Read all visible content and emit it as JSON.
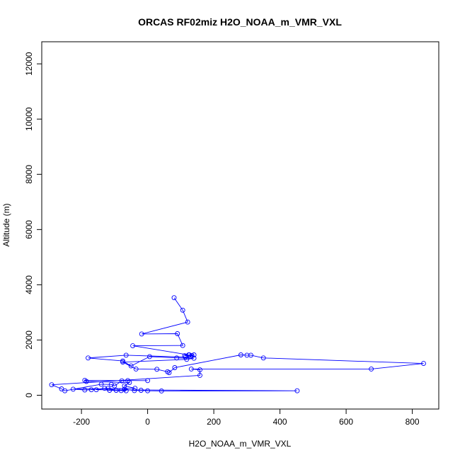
{
  "chart_data": {
    "type": "line",
    "title": "ORCAS RF02miz H2O_NOAA_m_VMR_VXL",
    "xlabel": "H2O_NOAA_m_VMR_VXL",
    "ylabel": "Altitude (m)",
    "xlim": [
      -320,
      880
    ],
    "ylim": [
      -500,
      12800
    ],
    "xticks": [
      -200,
      0,
      200,
      400,
      600,
      800
    ],
    "yticks": [
      0,
      2000,
      4000,
      6000,
      8000,
      10000,
      12000
    ],
    "grid": false,
    "series": [
      {
        "color": "#0000ff",
        "marker": "open-circle",
        "points": [
          [
            80,
            3530
          ],
          [
            106,
            3080
          ],
          [
            121,
            2650
          ],
          [
            -18,
            2220
          ],
          [
            90,
            2230
          ],
          [
            106,
            1800
          ],
          [
            -45,
            1790
          ],
          [
            124,
            1460
          ],
          [
            112,
            1430
          ],
          [
            134,
            1440
          ],
          [
            126,
            1460
          ],
          [
            140,
            1460
          ],
          [
            130,
            1400
          ],
          [
            114,
            1380
          ],
          [
            -65,
            1450
          ],
          [
            -180,
            1350
          ],
          [
            -75,
            1240
          ],
          [
            -50,
            1060
          ],
          [
            6,
            1400
          ],
          [
            88,
            1350
          ],
          [
            140,
            1340
          ],
          [
            118,
            1300
          ],
          [
            -75,
            1200
          ],
          [
            -35,
            950
          ],
          [
            28,
            940
          ],
          [
            60,
            850
          ],
          [
            65,
            820
          ],
          [
            82,
            1000
          ],
          [
            282,
            1460
          ],
          [
            300,
            1450
          ],
          [
            312,
            1450
          ],
          [
            350,
            1350
          ],
          [
            834,
            1150
          ],
          [
            676,
            950
          ],
          [
            132,
            950
          ],
          [
            158,
            920
          ],
          [
            158,
            720
          ],
          [
            -290,
            380
          ],
          [
            -260,
            230
          ],
          [
            -250,
            160
          ],
          [
            -140,
            400
          ],
          [
            -110,
            390
          ],
          [
            -100,
            340
          ],
          [
            -78,
            520
          ],
          [
            -60,
            530
          ],
          [
            0,
            530
          ],
          [
            -190,
            540
          ],
          [
            -185,
            500
          ],
          [
            -55,
            460
          ],
          [
            -70,
            340
          ],
          [
            -38,
            250
          ],
          [
            -225,
            220
          ],
          [
            -190,
            190
          ],
          [
            -170,
            200
          ],
          [
            -130,
            250
          ],
          [
            -115,
            180
          ],
          [
            -80,
            170
          ],
          [
            -70,
            220
          ],
          [
            -40,
            170
          ],
          [
            -20,
            180
          ],
          [
            0,
            160
          ],
          [
            42,
            155
          ],
          [
            452,
            160
          ],
          [
            -155,
            200
          ],
          [
            -120,
            250
          ],
          [
            -95,
            180
          ],
          [
            -65,
            160
          ]
        ]
      }
    ]
  }
}
